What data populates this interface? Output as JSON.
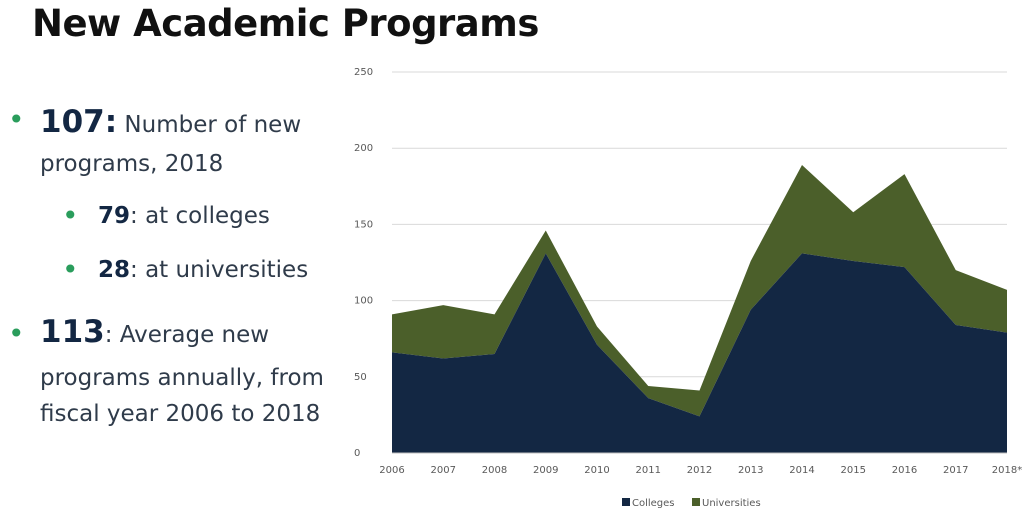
{
  "title": "New Academic Programs",
  "bullets": [
    {
      "number": "107:",
      "text": "Number of new programs, 2018",
      "line1": "Number of new",
      "line2": "programs, 2018"
    },
    {
      "number": "79",
      "text": ": at colleges"
    },
    {
      "number": "28",
      "text": ": at universities"
    },
    {
      "number": "113",
      "text": ": Average new programs annually, from fiscal year 2006 to 2018",
      "line1": ": Average new",
      "line2": "programs annually, from",
      "line3": "fiscal year 2006 to 2018"
    }
  ],
  "colors": {
    "colleges": "#132743",
    "universities": "#4b5f2a",
    "bullet": "#2a9d5c",
    "gridline": "#d9d9d9"
  },
  "chart_data": {
    "type": "area",
    "stacked": true,
    "categories": [
      "2006",
      "2007",
      "2008",
      "2009",
      "2010",
      "2011",
      "2012",
      "2013",
      "2014",
      "2015",
      "2016",
      "2017",
      "2018*"
    ],
    "series": [
      {
        "name": "Colleges",
        "values": [
          66,
          62,
          65,
          131,
          71,
          36,
          24,
          94,
          131,
          126,
          122,
          84,
          79
        ]
      },
      {
        "name": "Universities",
        "values": [
          25,
          35,
          26,
          15,
          12,
          8,
          17,
          32,
          58,
          32,
          61,
          36,
          28
        ]
      }
    ],
    "ylim": [
      0,
      250
    ],
    "yticks": [
      "0",
      "50",
      "100",
      "150",
      "200",
      "250"
    ],
    "grid": true,
    "legend": "bottom"
  }
}
